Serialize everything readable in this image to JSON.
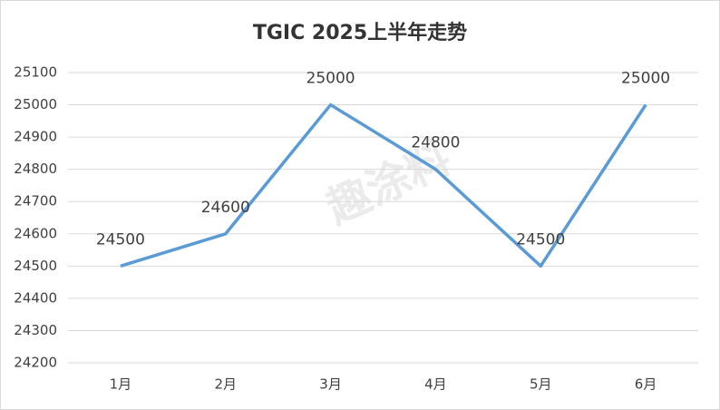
{
  "chart_data": {
    "type": "line",
    "title": "TGIC 2025上半年走势",
    "categories": [
      "1月",
      "2月",
      "3月",
      "4月",
      "5月",
      "6月"
    ],
    "series": [
      {
        "name": "TGIC",
        "color": "#5b9bd5",
        "values": [
          24500,
          24600,
          25000,
          24800,
          24500,
          25000
        ]
      }
    ],
    "ylim": [
      24200,
      25100
    ],
    "yticks": [
      24200,
      24300,
      24400,
      24500,
      24600,
      24700,
      24800,
      24900,
      25000,
      25100
    ],
    "grid": true,
    "data_labels": true,
    "watermark": "趣涂料"
  }
}
